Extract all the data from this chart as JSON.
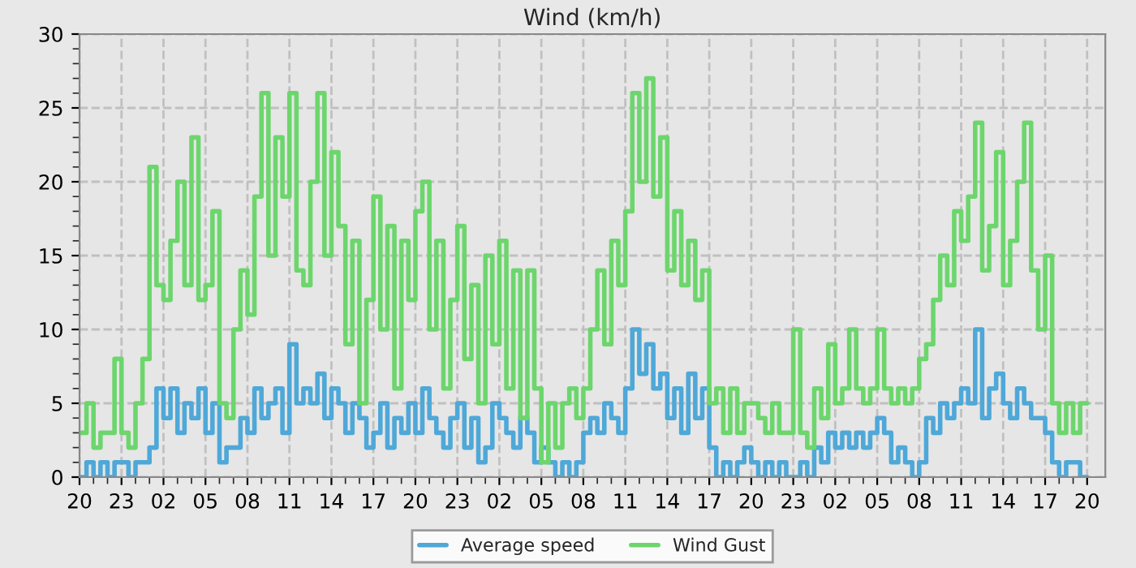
{
  "chart_data": {
    "type": "step",
    "title": "Wind (km/h)",
    "categories": [
      "20",
      null,
      null,
      null,
      null,
      null,
      "23",
      null,
      null,
      null,
      null,
      null,
      "02",
      null,
      null,
      null,
      null,
      null,
      "05",
      null,
      null,
      null,
      null,
      null,
      "08",
      null,
      null,
      null,
      null,
      null,
      "11",
      null,
      null,
      null,
      null,
      null,
      "14",
      null,
      null,
      null,
      null,
      null,
      "17",
      null,
      null,
      null,
      null,
      null,
      "20",
      null,
      null,
      null,
      null,
      null,
      "23",
      null,
      null,
      null,
      null,
      null,
      "02",
      null,
      null,
      null,
      null,
      null,
      "05",
      null,
      null,
      null,
      null,
      null,
      "08",
      null,
      null,
      null,
      null,
      null,
      "11",
      null,
      null,
      null,
      null,
      null,
      "14",
      null,
      null,
      null,
      null,
      null,
      "17",
      null,
      null,
      null,
      null,
      null,
      "20",
      null,
      null,
      null,
      null,
      null,
      "23",
      null,
      null,
      null,
      null,
      null,
      "02",
      null,
      null,
      null,
      null,
      null,
      "05",
      null,
      null,
      null,
      null,
      null,
      "08",
      null,
      null,
      null,
      null,
      null,
      "11",
      null,
      null,
      null,
      null,
      null,
      "14",
      null,
      null,
      null,
      null,
      null,
      "17",
      null,
      null,
      null,
      null,
      null,
      "20"
    ],
    "series": [
      {
        "name": "Average speed",
        "color": "#4ea8d8",
        "values": [
          0,
          1,
          0,
          1,
          0,
          1,
          1,
          0,
          1,
          1,
          2,
          6,
          4,
          6,
          3,
          5,
          4,
          6,
          3,
          5,
          1,
          2,
          2,
          4,
          3,
          6,
          4,
          5,
          6,
          3,
          9,
          5,
          6,
          5,
          7,
          4,
          6,
          5,
          3,
          5,
          4,
          2,
          3,
          5,
          2,
          4,
          3,
          5,
          3,
          6,
          4,
          3,
          2,
          4,
          5,
          2,
          4,
          1,
          2,
          5,
          4,
          3,
          2,
          4,
          3,
          1,
          2,
          1,
          0,
          1,
          0,
          1,
          3,
          4,
          3,
          5,
          4,
          3,
          6,
          10,
          7,
          9,
          6,
          7,
          4,
          6,
          3,
          7,
          4,
          6,
          2,
          0,
          1,
          0,
          1,
          2,
          1,
          0,
          1,
          0,
          1,
          0,
          0,
          1,
          0,
          2,
          1,
          3,
          2,
          3,
          2,
          3,
          2,
          3,
          4,
          3,
          1,
          2,
          1,
          0,
          1,
          4,
          3,
          5,
          4,
          5,
          6,
          5,
          10,
          4,
          6,
          7,
          5,
          4,
          6,
          5,
          4,
          4,
          3,
          1,
          0,
          1,
          1,
          0,
          0
        ]
      },
      {
        "name": "Wind Gust",
        "color": "#6cd66c",
        "values": [
          3,
          5,
          2,
          3,
          3,
          8,
          3,
          2,
          5,
          8,
          21,
          13,
          12,
          16,
          20,
          13,
          23,
          12,
          13,
          18,
          5,
          4,
          10,
          14,
          11,
          19,
          26,
          15,
          23,
          19,
          26,
          14,
          13,
          20,
          26,
          15,
          22,
          17,
          9,
          16,
          5,
          12,
          19,
          10,
          17,
          6,
          16,
          12,
          18,
          20,
          10,
          16,
          6,
          12,
          17,
          8,
          13,
          5,
          15,
          9,
          16,
          6,
          14,
          4,
          14,
          6,
          1,
          5,
          2,
          5,
          6,
          4,
          6,
          10,
          14,
          9,
          16,
          13,
          18,
          26,
          20,
          27,
          19,
          23,
          14,
          18,
          13,
          16,
          12,
          14,
          5,
          6,
          3,
          6,
          3,
          5,
          5,
          4,
          3,
          5,
          3,
          3,
          10,
          3,
          2,
          6,
          4,
          9,
          5,
          6,
          10,
          6,
          5,
          6,
          10,
          6,
          5,
          6,
          5,
          6,
          8,
          9,
          12,
          15,
          13,
          18,
          16,
          19,
          24,
          14,
          17,
          22,
          13,
          16,
          20,
          24,
          14,
          10,
          15,
          5,
          3,
          5,
          3,
          5,
          5
        ]
      }
    ],
    "ylim": [
      0,
      30
    ],
    "yticks": [
      0,
      5,
      10,
      15,
      20,
      25,
      30
    ],
    "grid": true,
    "legend": "bottom",
    "line_style": "solid",
    "marker": "none"
  }
}
